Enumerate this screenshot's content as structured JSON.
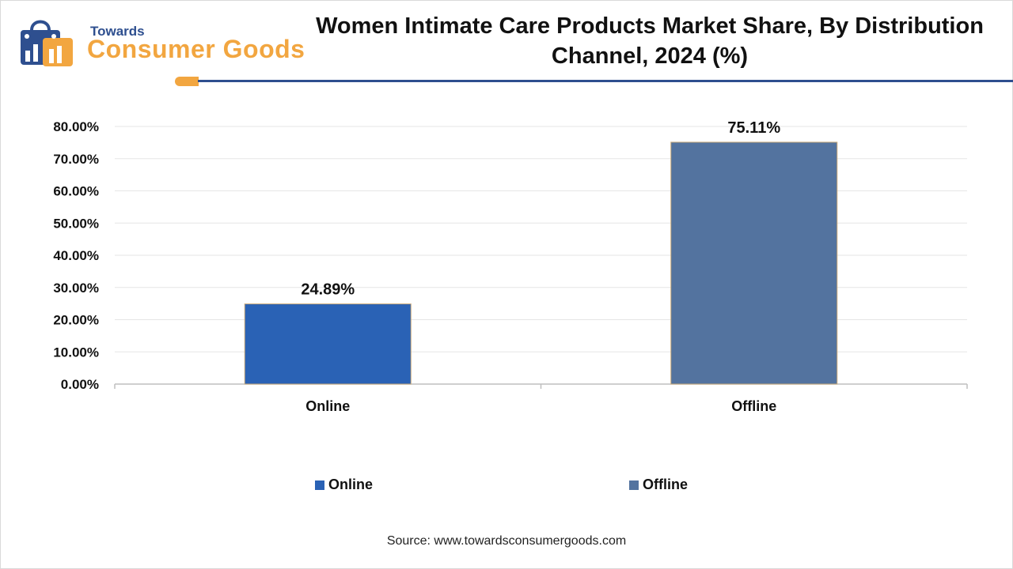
{
  "brand": {
    "small": "Towards",
    "big": "Consumer Goods",
    "colors": {
      "navy": "#2e4f8f",
      "orange": "#f2a640"
    }
  },
  "header": {
    "title_line1": "Women Intimate Care Products Market Share, By Distribution",
    "title_line2": "Channel, 2024 (%)"
  },
  "chart_data": {
    "type": "bar",
    "title": "Women Intimate Care Products Market Share, By Distribution Channel, 2024 (%)",
    "xlabel": "",
    "ylabel": "",
    "categories": [
      "Online",
      "Offline"
    ],
    "values": [
      24.89,
      75.11
    ],
    "value_labels": [
      "24.89%",
      "75.11%"
    ],
    "colors": [
      "#2a62b5",
      "#53739f"
    ],
    "ylim": [
      0,
      80
    ],
    "yticks": [
      0,
      10,
      20,
      30,
      40,
      50,
      60,
      70,
      80
    ],
    "ytick_labels": [
      "0.00%",
      "10.00%",
      "20.00%",
      "30.00%",
      "40.00%",
      "50.00%",
      "60.00%",
      "70.00%",
      "80.00%"
    ],
    "grid": true,
    "legend_position": "bottom"
  },
  "legend": [
    {
      "label": "Online",
      "color": "#2a62b5"
    },
    {
      "label": "Offline",
      "color": "#53739f"
    }
  ],
  "source": "Source: www.towardsconsumergoods.com"
}
